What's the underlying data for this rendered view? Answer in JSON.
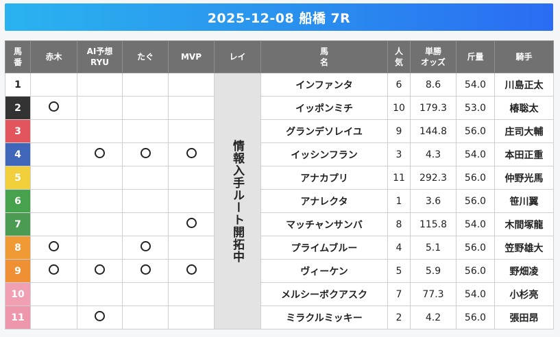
{
  "title": "2025-12-08 船橋 7R",
  "headers": {
    "num": [
      "馬",
      "番"
    ],
    "akagi": "赤木",
    "ai": [
      "AI予想",
      "RYU"
    ],
    "tagu": "たぐ",
    "mvp": "MVP",
    "rei": "レイ",
    "horse": [
      "馬",
      "名"
    ],
    "pop": [
      "人",
      "気"
    ],
    "odds": [
      "単勝",
      "オッズ"
    ],
    "weight": "斤量",
    "jockey": "騎手"
  },
  "rei_text": "情報入手ルート開拓中",
  "mark_symbol": "circle",
  "gate_colors": {
    "1": "#ffffff",
    "2": "#333333",
    "3": "#e3555d",
    "4": "#3f66b8",
    "5": "#f0cf3a",
    "6": "#47a24d",
    "7": "#4c9b53",
    "8": "#ef9a34",
    "9": "#ee9033",
    "10": "#f0a0b2",
    "11": "#ee96ab"
  },
  "rows": [
    {
      "num": "1",
      "akagi": false,
      "ai": false,
      "tagu": false,
      "mvp": false,
      "horse": "インファンタ",
      "pop": "6",
      "odds": "8.6",
      "weight": "54.0",
      "jockey": "川島正太"
    },
    {
      "num": "2",
      "akagi": true,
      "ai": false,
      "tagu": false,
      "mvp": false,
      "horse": "イッポンミチ",
      "pop": "10",
      "odds": "179.3",
      "weight": "53.0",
      "jockey": "椿聡太"
    },
    {
      "num": "3",
      "akagi": false,
      "ai": false,
      "tagu": false,
      "mvp": false,
      "horse": "グランデソレイユ",
      "pop": "9",
      "odds": "144.8",
      "weight": "56.0",
      "jockey": "庄司大輔"
    },
    {
      "num": "4",
      "akagi": false,
      "ai": true,
      "tagu": true,
      "mvp": true,
      "horse": "イッシンフラン",
      "pop": "3",
      "odds": "4.3",
      "weight": "54.0",
      "jockey": "本田正重"
    },
    {
      "num": "5",
      "akagi": false,
      "ai": false,
      "tagu": false,
      "mvp": false,
      "horse": "アナカプリ",
      "pop": "11",
      "odds": "292.3",
      "weight": "56.0",
      "jockey": "仲野光馬"
    },
    {
      "num": "6",
      "akagi": false,
      "ai": false,
      "tagu": false,
      "mvp": false,
      "horse": "アナレクタ",
      "pop": "1",
      "odds": "3.6",
      "weight": "56.0",
      "jockey": "笹川翼"
    },
    {
      "num": "7",
      "akagi": false,
      "ai": false,
      "tagu": false,
      "mvp": true,
      "horse": "マッチャンサンバ",
      "pop": "8",
      "odds": "115.8",
      "weight": "54.0",
      "jockey": "木間塚龍"
    },
    {
      "num": "8",
      "akagi": true,
      "ai": false,
      "tagu": true,
      "mvp": false,
      "horse": "プライムブルー",
      "pop": "4",
      "odds": "5.1",
      "weight": "56.0",
      "jockey": "笠野雄大"
    },
    {
      "num": "9",
      "akagi": true,
      "ai": true,
      "tagu": true,
      "mvp": true,
      "horse": "ヴィーケン",
      "pop": "5",
      "odds": "5.9",
      "weight": "56.0",
      "jockey": "野畑凌"
    },
    {
      "num": "10",
      "akagi": false,
      "ai": false,
      "tagu": false,
      "mvp": false,
      "horse": "メルシーボクアスク",
      "pop": "7",
      "odds": "77.3",
      "weight": "54.0",
      "jockey": "小杉亮"
    },
    {
      "num": "11",
      "akagi": false,
      "ai": true,
      "tagu": false,
      "mvp": false,
      "horse": "ミラクルミッキー",
      "pop": "2",
      "odds": "4.2",
      "weight": "56.0",
      "jockey": "張田昂"
    }
  ]
}
